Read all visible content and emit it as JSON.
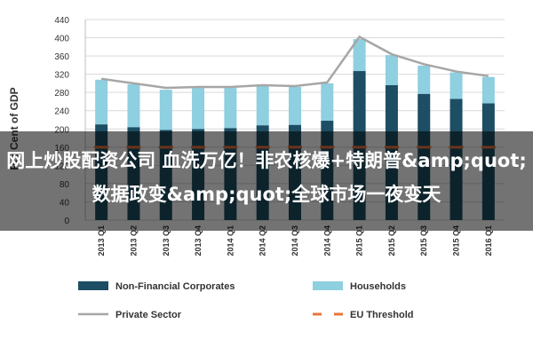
{
  "chart_data": {
    "type": "bar",
    "stacked": true,
    "categories": [
      "2013 Q1",
      "2013 Q2",
      "2013 Q3",
      "2013 Q4",
      "2014 Q1",
      "2014 Q2",
      "2014 Q3",
      "2014 Q4",
      "2015 Q1",
      "2015 Q2",
      "2015 Q3",
      "2015 Q4",
      "2016 Q1"
    ],
    "series": [
      {
        "name": "Non-Financial Corporates",
        "type": "bar",
        "color": "#1d4e63",
        "values": [
          210,
          204,
          198,
          200,
          202,
          208,
          209,
          218,
          327,
          296,
          277,
          266,
          256
        ]
      },
      {
        "name": "Households",
        "type": "bar",
        "color": "#8ecfe0",
        "values": [
          98,
          94,
          88,
          90,
          88,
          86,
          83,
          82,
          70,
          66,
          62,
          58,
          58
        ]
      },
      {
        "name": "Private Sector",
        "type": "line",
        "color": "#a6a6a6",
        "values": [
          310,
          300,
          290,
          292,
          292,
          296,
          294,
          302,
          402,
          364,
          342,
          326,
          316
        ]
      },
      {
        "name": "EU Threshold",
        "type": "line-dashed",
        "color": "#e8743b",
        "values": [
          160,
          160,
          160,
          160,
          160,
          160,
          160,
          160,
          160,
          160,
          160,
          160,
          160
        ]
      }
    ],
    "ylabel": "Per Cent of GDP",
    "ylim": [
      0,
      440
    ],
    "yticks": [
      0,
      40,
      80,
      120,
      160,
      200,
      240,
      280,
      320,
      360,
      400,
      440
    ],
    "grid": true,
    "legend_position": "bottom"
  },
  "overlay_text": "网上炒股配资公司 血洗万亿！非农核爆+特朗普&amp;quot;数据政变&amp;quot;全球市场一夜变天"
}
